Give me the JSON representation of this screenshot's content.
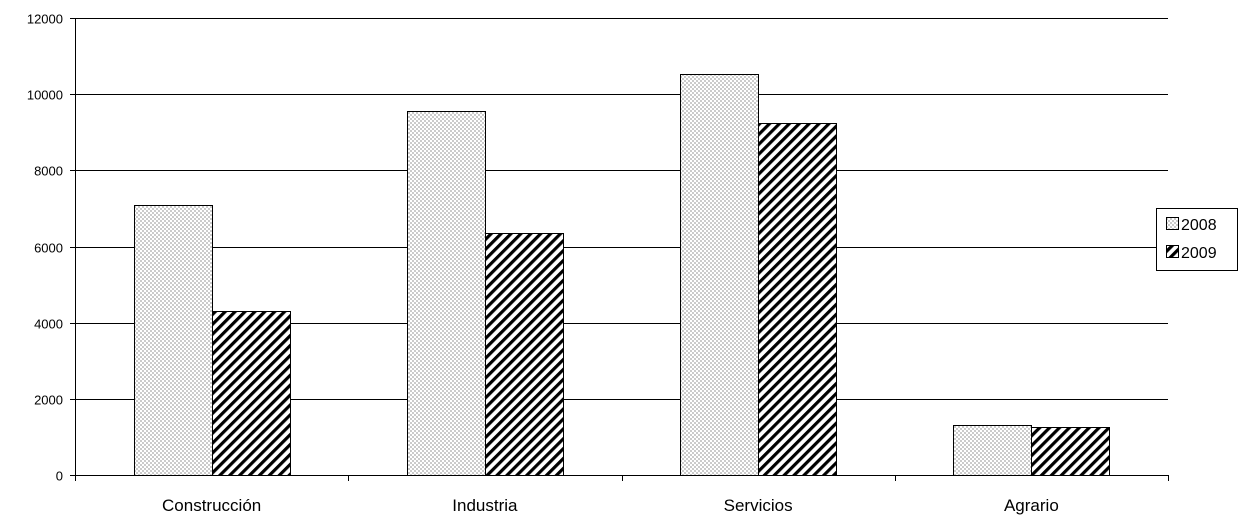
{
  "chart_data": {
    "type": "bar",
    "categories": [
      "Construcción",
      "Industria",
      "Servicios",
      "Agrario"
    ],
    "series": [
      {
        "name": "2008",
        "values": [
          7080,
          9560,
          10530,
          1320
        ],
        "pattern": "dots"
      },
      {
        "name": "2009",
        "values": [
          4310,
          6350,
          9250,
          1270
        ],
        "pattern": "diagonal-stripes"
      }
    ],
    "yticks": [
      0,
      2000,
      4000,
      6000,
      8000,
      10000,
      12000
    ],
    "ylim": [
      0,
      12000
    ],
    "grid": true,
    "legend": "right",
    "colors": {
      "bar_fill": "#ffffff",
      "bar_stroke": "#000000",
      "grid": "#000000"
    }
  }
}
